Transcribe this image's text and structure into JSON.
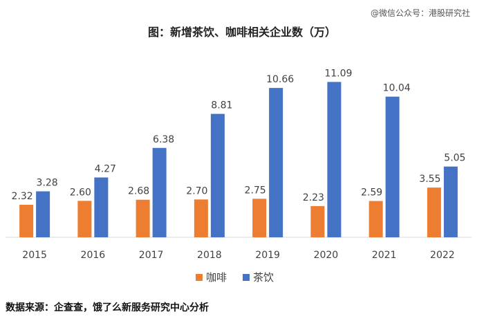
{
  "header": {
    "watermark": "@微信公众号：港股研究社"
  },
  "footer": {
    "source": "数据来源：企查查，饿了么新服务研究中心分析"
  },
  "chart_data": {
    "type": "bar",
    "title": "图：新增茶饮、咖啡相关企业数（万）",
    "xlabel": "",
    "ylabel": "",
    "ylim": [
      0,
      12
    ],
    "grid": false,
    "legend_position": "bottom-center",
    "categories": [
      "2015",
      "2016",
      "2017",
      "2018",
      "2019",
      "2020",
      "2021",
      "2022"
    ],
    "series": [
      {
        "name": "咖啡",
        "color": "#ED7D31",
        "values": [
          2.32,
          2.6,
          2.68,
          2.7,
          2.75,
          2.23,
          2.59,
          3.55
        ],
        "labels": [
          "2.32",
          "2.60",
          "2.68",
          "2.70",
          "2.75",
          "2.23",
          "2.59",
          "3.55"
        ]
      },
      {
        "name": "茶饮",
        "color": "#4472C4",
        "values": [
          3.28,
          4.27,
          6.38,
          8.81,
          10.66,
          11.09,
          10.04,
          5.05
        ],
        "labels": [
          "3.28",
          "4.27",
          "6.38",
          "8.81",
          "10.66",
          "11.09",
          "10.04",
          "5.05"
        ]
      }
    ]
  }
}
